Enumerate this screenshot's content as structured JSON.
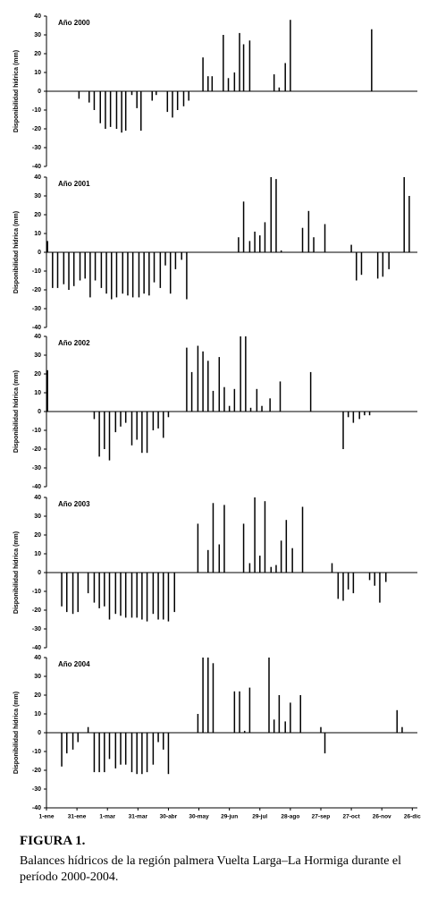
{
  "chart_data": [
    {
      "type": "bar",
      "title": "Año 2000",
      "y_label": "Disponibilidad hídrica (mm)",
      "color": "#000000",
      "xlim": [
        1,
        366
      ],
      "ylim": [
        -40,
        40
      ],
      "yticks": [
        40,
        30,
        20,
        10,
        0,
        -10,
        -20,
        -30,
        -40
      ],
      "x": [
        33,
        43,
        48,
        54,
        59,
        64,
        70,
        75,
        79,
        85,
        90,
        94,
        105,
        109,
        120,
        125,
        130,
        136,
        141,
        155,
        160,
        164,
        175,
        180,
        186,
        191,
        195,
        201,
        225,
        230,
        236,
        241,
        321
      ],
      "values": [
        -4,
        -6,
        -10,
        -17,
        -20,
        -19,
        -20,
        -22,
        -21,
        -2,
        -9,
        -21,
        -5,
        -2,
        -11,
        -14,
        -10,
        -8,
        -5,
        18,
        8,
        8,
        30,
        7,
        10,
        31,
        25,
        27,
        9,
        2,
        15,
        38,
        33
      ]
    },
    {
      "type": "bar",
      "title": "Año 2001",
      "y_label": "Disponibilidad hídrica (mm)",
      "color": "#000000",
      "xlim": [
        1,
        366
      ],
      "ylim": [
        -40,
        40
      ],
      "yticks": [
        40,
        30,
        20,
        10,
        0,
        -10,
        -20,
        -30,
        -40
      ],
      "x": [
        2,
        7,
        12,
        18,
        23,
        28,
        34,
        39,
        44,
        49,
        55,
        60,
        65,
        70,
        76,
        81,
        86,
        92,
        97,
        102,
        107,
        113,
        118,
        123,
        128,
        134,
        139,
        190,
        195,
        201,
        206,
        211,
        216,
        222,
        227,
        232,
        253,
        259,
        264,
        275,
        301,
        306,
        311,
        327,
        332,
        338,
        353,
        358
      ],
      "values": [
        6,
        -19,
        -19,
        -17,
        -20,
        -18,
        -15,
        -14,
        -24,
        -15,
        -19,
        -22,
        -25,
        -24,
        -22,
        -23,
        -24,
        -24,
        -22,
        -23,
        -16,
        -19,
        -7,
        -22,
        -9,
        -4,
        -25,
        8,
        27,
        6,
        11,
        9,
        16,
        40,
        39,
        1,
        13,
        22,
        8,
        15,
        4,
        -15,
        -12,
        -14,
        -13,
        -9,
        40,
        30
      ]
    },
    {
      "type": "bar",
      "title": "Año 2002",
      "y_label": "Disponibilidad hídrica (mm)",
      "color": "#000000",
      "xlim": [
        1,
        366
      ],
      "ylim": [
        -40,
        40
      ],
      "yticks": [
        40,
        30,
        20,
        10,
        0,
        -10,
        -20,
        -30,
        -40
      ],
      "x": [
        2,
        48,
        53,
        58,
        63,
        69,
        74,
        79,
        85,
        90,
        95,
        100,
        106,
        111,
        116,
        121,
        139,
        144,
        150,
        155,
        160,
        165,
        171,
        176,
        181,
        186,
        192,
        197,
        202,
        208,
        213,
        221,
        231,
        261,
        293,
        298,
        303,
        309,
        314,
        319
      ],
      "values": [
        22,
        -4,
        -24,
        -20,
        -26,
        -11,
        -8,
        -6,
        -18,
        -15,
        -22,
        -22,
        -10,
        -9,
        -14,
        -3,
        34,
        21,
        35,
        32,
        27,
        11,
        29,
        13,
        3,
        12,
        40,
        40,
        2,
        12,
        3,
        7,
        16,
        21,
        -20,
        -3,
        -6,
        -4,
        -2,
        -2
      ]
    },
    {
      "type": "bar",
      "title": "Año 2003",
      "y_label": "Disponibilidad hídrica (mm)",
      "color": "#000000",
      "xlim": [
        1,
        366
      ],
      "ylim": [
        -40,
        40
      ],
      "yticks": [
        40,
        30,
        20,
        10,
        0,
        -10,
        -20,
        -30,
        -40
      ],
      "x": [
        16,
        21,
        27,
        32,
        42,
        48,
        53,
        58,
        63,
        69,
        74,
        79,
        85,
        90,
        95,
        100,
        106,
        111,
        116,
        121,
        127,
        150,
        160,
        165,
        171,
        176,
        195,
        201,
        206,
        211,
        216,
        222,
        227,
        232,
        237,
        243,
        253,
        282,
        288,
        293,
        298,
        303,
        319,
        324,
        329,
        335
      ],
      "values": [
        -18,
        -21,
        -22,
        -21,
        -11,
        -16,
        -19,
        -18,
        -25,
        -22,
        -23,
        -24,
        -24,
        -24,
        -25,
        -26,
        -22,
        -25,
        -25,
        -26,
        -21,
        26,
        12,
        37,
        15,
        36,
        26,
        5,
        40,
        9,
        38,
        3,
        4,
        17,
        28,
        13,
        35,
        5,
        -14,
        -15,
        -9,
        -11,
        -4,
        -7,
        -16,
        -5
      ]
    },
    {
      "type": "bar",
      "title": "Año 2004",
      "y_label": "Disponibilidad hídrica (mm)",
      "color": "#000000",
      "xlim": [
        1,
        366
      ],
      "ylim": [
        -40,
        40
      ],
      "yticks": [
        40,
        30,
        20,
        10,
        0,
        -10,
        -20,
        -30,
        -40
      ],
      "xticks": [
        {
          "value": 1,
          "label": "1-ene"
        },
        {
          "value": 31,
          "label": "31-ene"
        },
        {
          "value": 61,
          "label": "1-mar"
        },
        {
          "value": 91,
          "label": "31-mar"
        },
        {
          "value": 121,
          "label": "30-abr"
        },
        {
          "value": 151,
          "label": "30-may"
        },
        {
          "value": 181,
          "label": "29-jun"
        },
        {
          "value": 211,
          "label": "29-jul"
        },
        {
          "value": 241,
          "label": "28-ago"
        },
        {
          "value": 271,
          "label": "27-sep"
        },
        {
          "value": 301,
          "label": "27-oct"
        },
        {
          "value": 331,
          "label": "26-nov"
        },
        {
          "value": 361,
          "label": "26-dic"
        }
      ],
      "x": [
        16,
        21,
        27,
        32,
        42,
        48,
        53,
        58,
        63,
        69,
        74,
        79,
        85,
        90,
        95,
        100,
        106,
        111,
        116,
        121,
        150,
        155,
        160,
        165,
        186,
        191,
        196,
        201,
        220,
        225,
        230,
        236,
        241,
        251,
        271,
        275,
        346,
        351
      ],
      "values": [
        -18,
        -11,
        -9,
        -5,
        3,
        -21,
        -21,
        -21,
        -14,
        -19,
        -17,
        -17,
        -21,
        -22,
        -22,
        -21,
        -17,
        -5,
        -9,
        -22,
        10,
        40,
        40,
        37,
        22,
        22,
        1,
        24,
        40,
        7,
        20,
        6,
        16,
        20,
        3,
        -11,
        12,
        3
      ]
    }
  ],
  "caption": {
    "label": "FIGURA 1.",
    "text": "Balances hídricos de la región palmera Vuelta Larga–La Hormiga durante el período 2000-2004."
  }
}
